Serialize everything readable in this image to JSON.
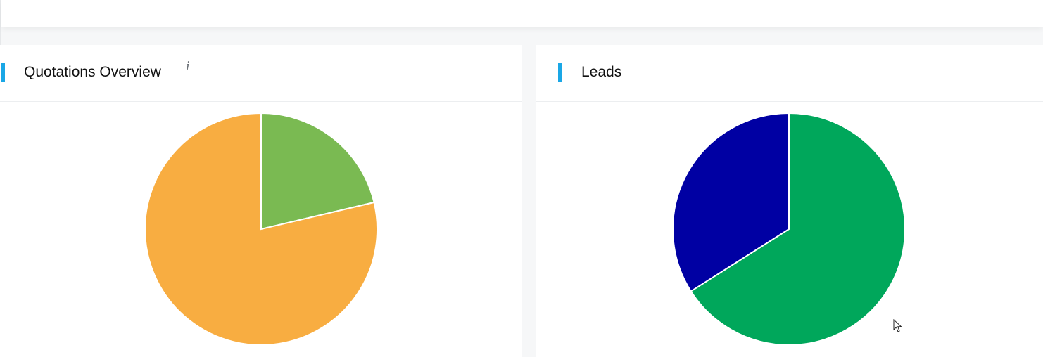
{
  "colors": {
    "accent": "#1aa7e6",
    "panel_background": "#ffffff",
    "page_background": "#f6f7f8",
    "title_text": "#111111"
  },
  "panels": [
    {
      "id": "quotations",
      "title": "Quotations Overview",
      "info_icon": "i"
    },
    {
      "id": "leads",
      "title": "Leads"
    }
  ],
  "chart_data": [
    {
      "type": "pie",
      "slices": [
        {
          "value": 21.3,
          "color": "#7aba52"
        },
        {
          "value": 78.7,
          "color": "#f8ad41"
        }
      ]
    },
    {
      "type": "pie",
      "slices": [
        {
          "value": 66.0,
          "color": "#00a75b"
        },
        {
          "value": 34.0,
          "color": "#0000a3"
        }
      ]
    }
  ],
  "icons": [
    "info-icon",
    "mouse-pointer-icon"
  ]
}
